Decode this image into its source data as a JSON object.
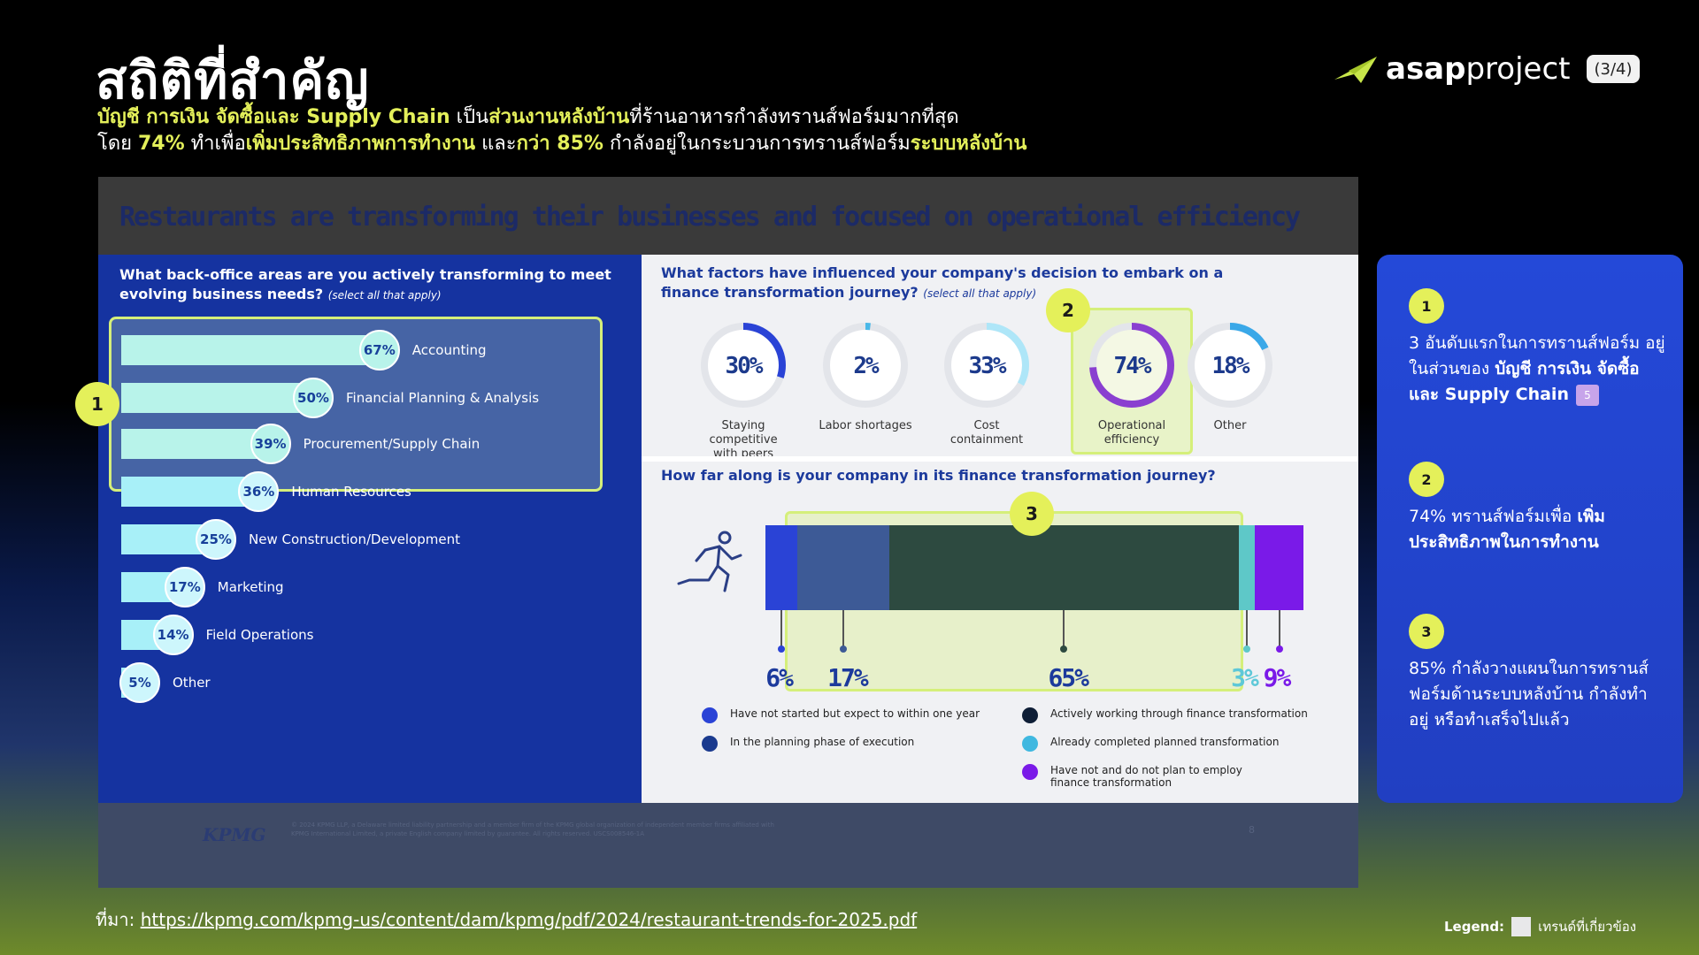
{
  "header": {
    "title": "สถิติที่สำคัญ",
    "subtitle_line1_parts": [
      "บัญชี การเงิน จัดซื้อและ Supply Chain",
      " เป็น",
      "ส่วนงานหลังบ้าน",
      "ที่ร้านอาหารกำลังทรานส์ฟอร์มมากที่สุด"
    ],
    "subtitle_line2_parts": [
      "โดย ",
      "74%",
      " ทำเพื่อ",
      "เพิ่มประสิทธิภาพการทำงาน",
      " และ",
      "กว่า 85%",
      " กำลังอยู่ในกระบวนการทรานส์ฟอร์ม",
      "ระบบหลังบ้าน"
    ],
    "logo_bold": "asap",
    "logo_light": "project",
    "page_indicator": "(3/4)"
  },
  "report": {
    "title": "Restaurants are transforming their businesses and focused on operational efficiency",
    "left_question": "What back-office areas are you actively transforming to meet evolving business needs?",
    "left_question_note": "(select all that apply)",
    "back_office": [
      {
        "label": "Accounting",
        "value": 67,
        "pct": "67%"
      },
      {
        "label": "Financial Planning & Analysis",
        "value": 50,
        "pct": "50%"
      },
      {
        "label": "Procurement/Supply Chain",
        "value": 39,
        "pct": "39%"
      },
      {
        "label": "Human Resources",
        "value": 36,
        "pct": "36%"
      },
      {
        "label": "New Construction/Development",
        "value": 25,
        "pct": "25%"
      },
      {
        "label": "Marketing",
        "value": 17,
        "pct": "17%"
      },
      {
        "label": "Field Operations",
        "value": 14,
        "pct": "14%"
      },
      {
        "label": "Other",
        "value": 5,
        "pct": "5%"
      }
    ],
    "factors_question": "What factors have influenced your company's decision to embark on a finance transformation journey?",
    "factors_question_note": "(select all that apply)",
    "factors": [
      {
        "label": "Staying competitive with peers",
        "value": 30,
        "pct": "30%",
        "color": "#2a43d6"
      },
      {
        "label": "Labor shortages",
        "value": 2,
        "pct": "2%",
        "color": "#4ab8e8"
      },
      {
        "label": "Cost containment",
        "value": 33,
        "pct": "33%",
        "color": "#aee6f8"
      },
      {
        "label": "Operational efficiency",
        "value": 74,
        "pct": "74%",
        "color": "#8a3fd0"
      },
      {
        "label": "Other",
        "value": 18,
        "pct": "18%",
        "color": "#3aa8e8"
      }
    ],
    "journey_question": "How far along is your company in its finance transformation journey?",
    "journey": [
      {
        "label": "Have not started but expect to within one year",
        "value": 6,
        "pct": "6%",
        "color": "#2a43d6"
      },
      {
        "label": "In the planning phase of execution",
        "value": 17,
        "pct": "17%",
        "color": "#1a3a8e"
      },
      {
        "label": "Actively working through finance transformation",
        "value": 65,
        "pct": "65%",
        "color": "#0e1e36"
      },
      {
        "label": "Already completed planned transformation",
        "value": 3,
        "pct": "3%",
        "color": "#3fb8e0"
      },
      {
        "label": "Have not and do not plan to employ finance transformation",
        "value": 9,
        "pct": "9%",
        "color": "#7a1ae8"
      }
    ],
    "footer_brand": "KPMG",
    "footer_fine": "© 2024 KPMG LLP, a Delaware limited liability partnership and a member firm of the KPMG global organization of independent member firms affiliated with KPMG International Limited, a private English company limited by guarantee. All rights reserved. USCS008546-1A",
    "footer_page": "8"
  },
  "badges": [
    "1",
    "2",
    "3"
  ],
  "info_card": {
    "item1_number": "1",
    "item1_text": "3 อันดับแรกในการทรานส์ฟอร์ม อยู่ในส่วนของ ",
    "item1_bold": "บัญชี การเงิน จัดซื้อและ Supply Chain",
    "item1_tag": "5",
    "item2_number": "2",
    "item2_text": "74% ทรานส์ฟอร์มเพื่อ ",
    "item2_bold": "เพิ่มประสิทธิภาพในการทำงาน",
    "item3_number": "3",
    "item3_text": "85% กำลังวางแผนในการทรานส์ฟอร์มด้านระบบหลังบ้าน กำลังทำอยู่ หรือทำเสร็จไปแล้ว"
  },
  "source": {
    "label": "ที่มา: ",
    "url": "https://kpmg.com/kpmg-us/content/dam/kpmg/pdf/2024/restaurant-trends-for-2025.pdf"
  },
  "legend": {
    "label": "Legend:",
    "text": "เทรนด์ที่เกี่ยวข้อง"
  },
  "colors": {
    "accent_yellow": "#e4f05a",
    "card_blue": "#2449d8",
    "panel_blue": "#1533a0"
  }
}
